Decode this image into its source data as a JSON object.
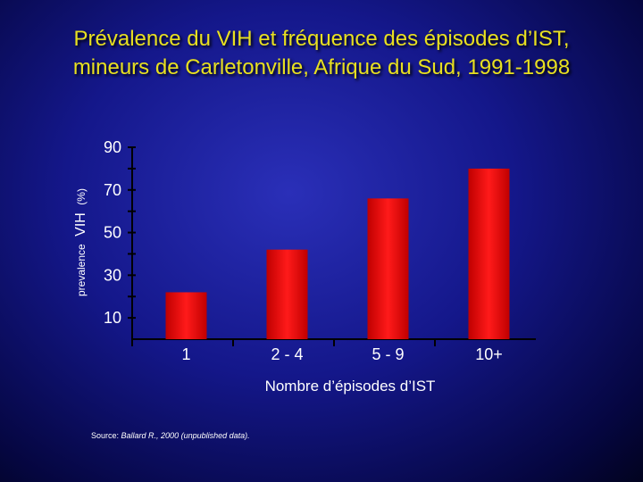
{
  "slide": {
    "title_line1": "Prévalence du VIH et fréquence des épisodes d’IST,",
    "title_line2": "mineurs de Carletonville, Afrique du Sud, 1991-1998",
    "source_prefix": "Source: ",
    "source_ref": "Ballard R., 2000 (unpublished data)."
  },
  "chart_data": {
    "type": "bar",
    "categories": [
      "1",
      "2 - 4",
      "5 - 9",
      "10+"
    ],
    "values": [
      22,
      42,
      66,
      80
    ],
    "xlabel": "Nombre d’épisodes d’IST",
    "ylabel_prefix": "prevalence",
    "ylabel_main": "VIH",
    "ylabel_suffix": "(%)",
    "ylim": [
      0,
      90
    ],
    "yticks": [
      10,
      30,
      50,
      70,
      90
    ],
    "bar_color": "#ee1111",
    "text_color": "#ffffff",
    "title_color": "#e8e020",
    "grid": false
  }
}
